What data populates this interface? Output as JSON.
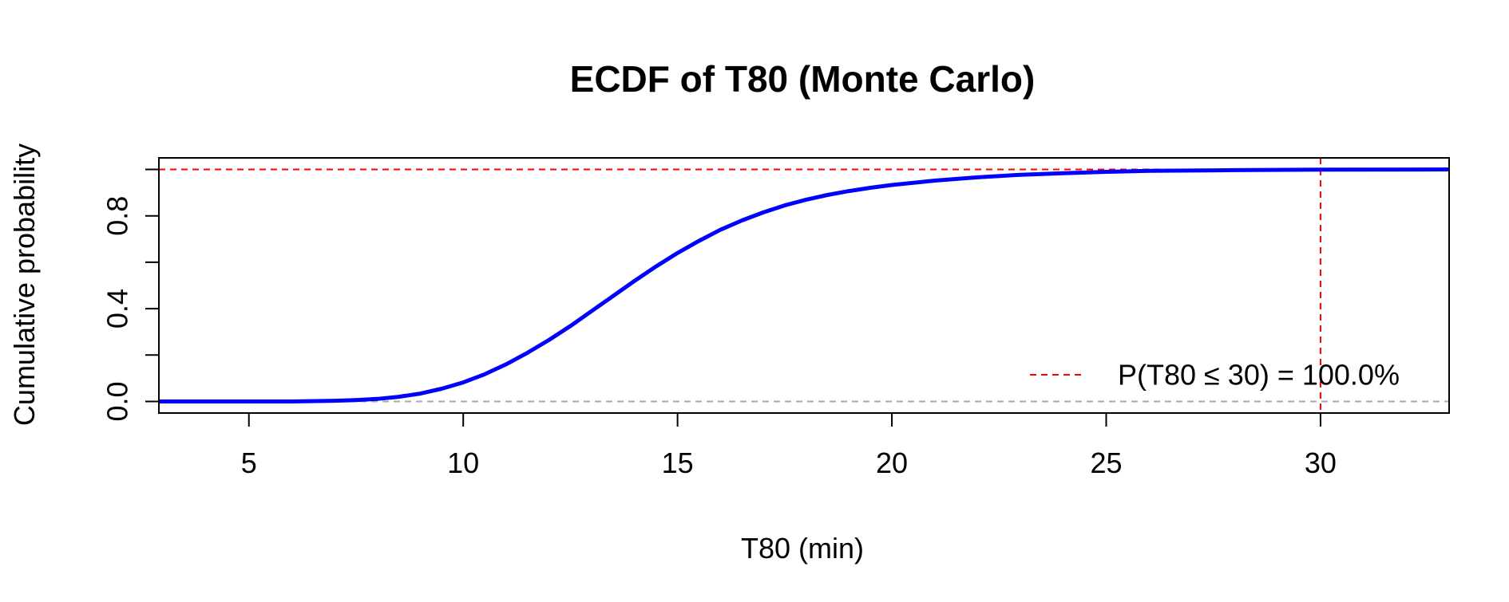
{
  "chart_data": {
    "type": "line",
    "title": "ECDF of T80 (Monte Carlo)",
    "xlabel": "T80 (min)",
    "ylabel": "Cumulative probability",
    "xlim": [
      2.9,
      33.0
    ],
    "ylim": [
      -0.05,
      1.05
    ],
    "x_ticks": [
      5,
      10,
      15,
      20,
      25,
      30
    ],
    "x_tick_labels": [
      "5",
      "10",
      "15",
      "20",
      "25",
      "30"
    ],
    "y_ticks": [
      0.0,
      0.2,
      0.4,
      0.6,
      0.8,
      1.0
    ],
    "y_tick_labels": [
      "0.0",
      "",
      "0.4",
      "",
      "0.8",
      ""
    ],
    "grid": false,
    "series": [
      {
        "color": "#0000ff",
        "x": [
          2.9,
          6.0,
          7.0,
          7.5,
          8.0,
          8.5,
          9.0,
          9.5,
          10.0,
          10.5,
          11.0,
          11.5,
          12.0,
          12.5,
          13.0,
          13.5,
          14.0,
          14.5,
          15.0,
          15.5,
          16.0,
          16.5,
          17.0,
          17.5,
          18.0,
          18.5,
          19.0,
          19.5,
          20.0,
          21.0,
          22.0,
          23.0,
          24.0,
          25.0,
          26.0,
          28.0,
          30.0,
          33.0
        ],
        "y": [
          0.0,
          0.0,
          0.003,
          0.006,
          0.011,
          0.02,
          0.034,
          0.055,
          0.082,
          0.117,
          0.16,
          0.21,
          0.265,
          0.325,
          0.39,
          0.455,
          0.52,
          0.582,
          0.64,
          0.692,
          0.74,
          0.78,
          0.815,
          0.845,
          0.87,
          0.89,
          0.907,
          0.921,
          0.933,
          0.952,
          0.966,
          0.977,
          0.984,
          0.99,
          0.994,
          0.997,
          0.999,
          1.0
        ]
      }
    ],
    "reference_lines": [
      {
        "orientation": "horizontal",
        "value": 1.0,
        "color": "#ff0000",
        "style": "dashed"
      },
      {
        "orientation": "horizontal",
        "value": 0.0,
        "color": "#aaaaaa",
        "style": "dashed"
      },
      {
        "orientation": "vertical",
        "value": 30,
        "color": "#ff0000",
        "style": "dashed"
      }
    ],
    "legend": {
      "position": "bottom-right",
      "entries": [
        {
          "label": "P(T80 ≤ 30) = 100.0%",
          "color": "#ff0000",
          "style": "dashed"
        }
      ]
    }
  }
}
